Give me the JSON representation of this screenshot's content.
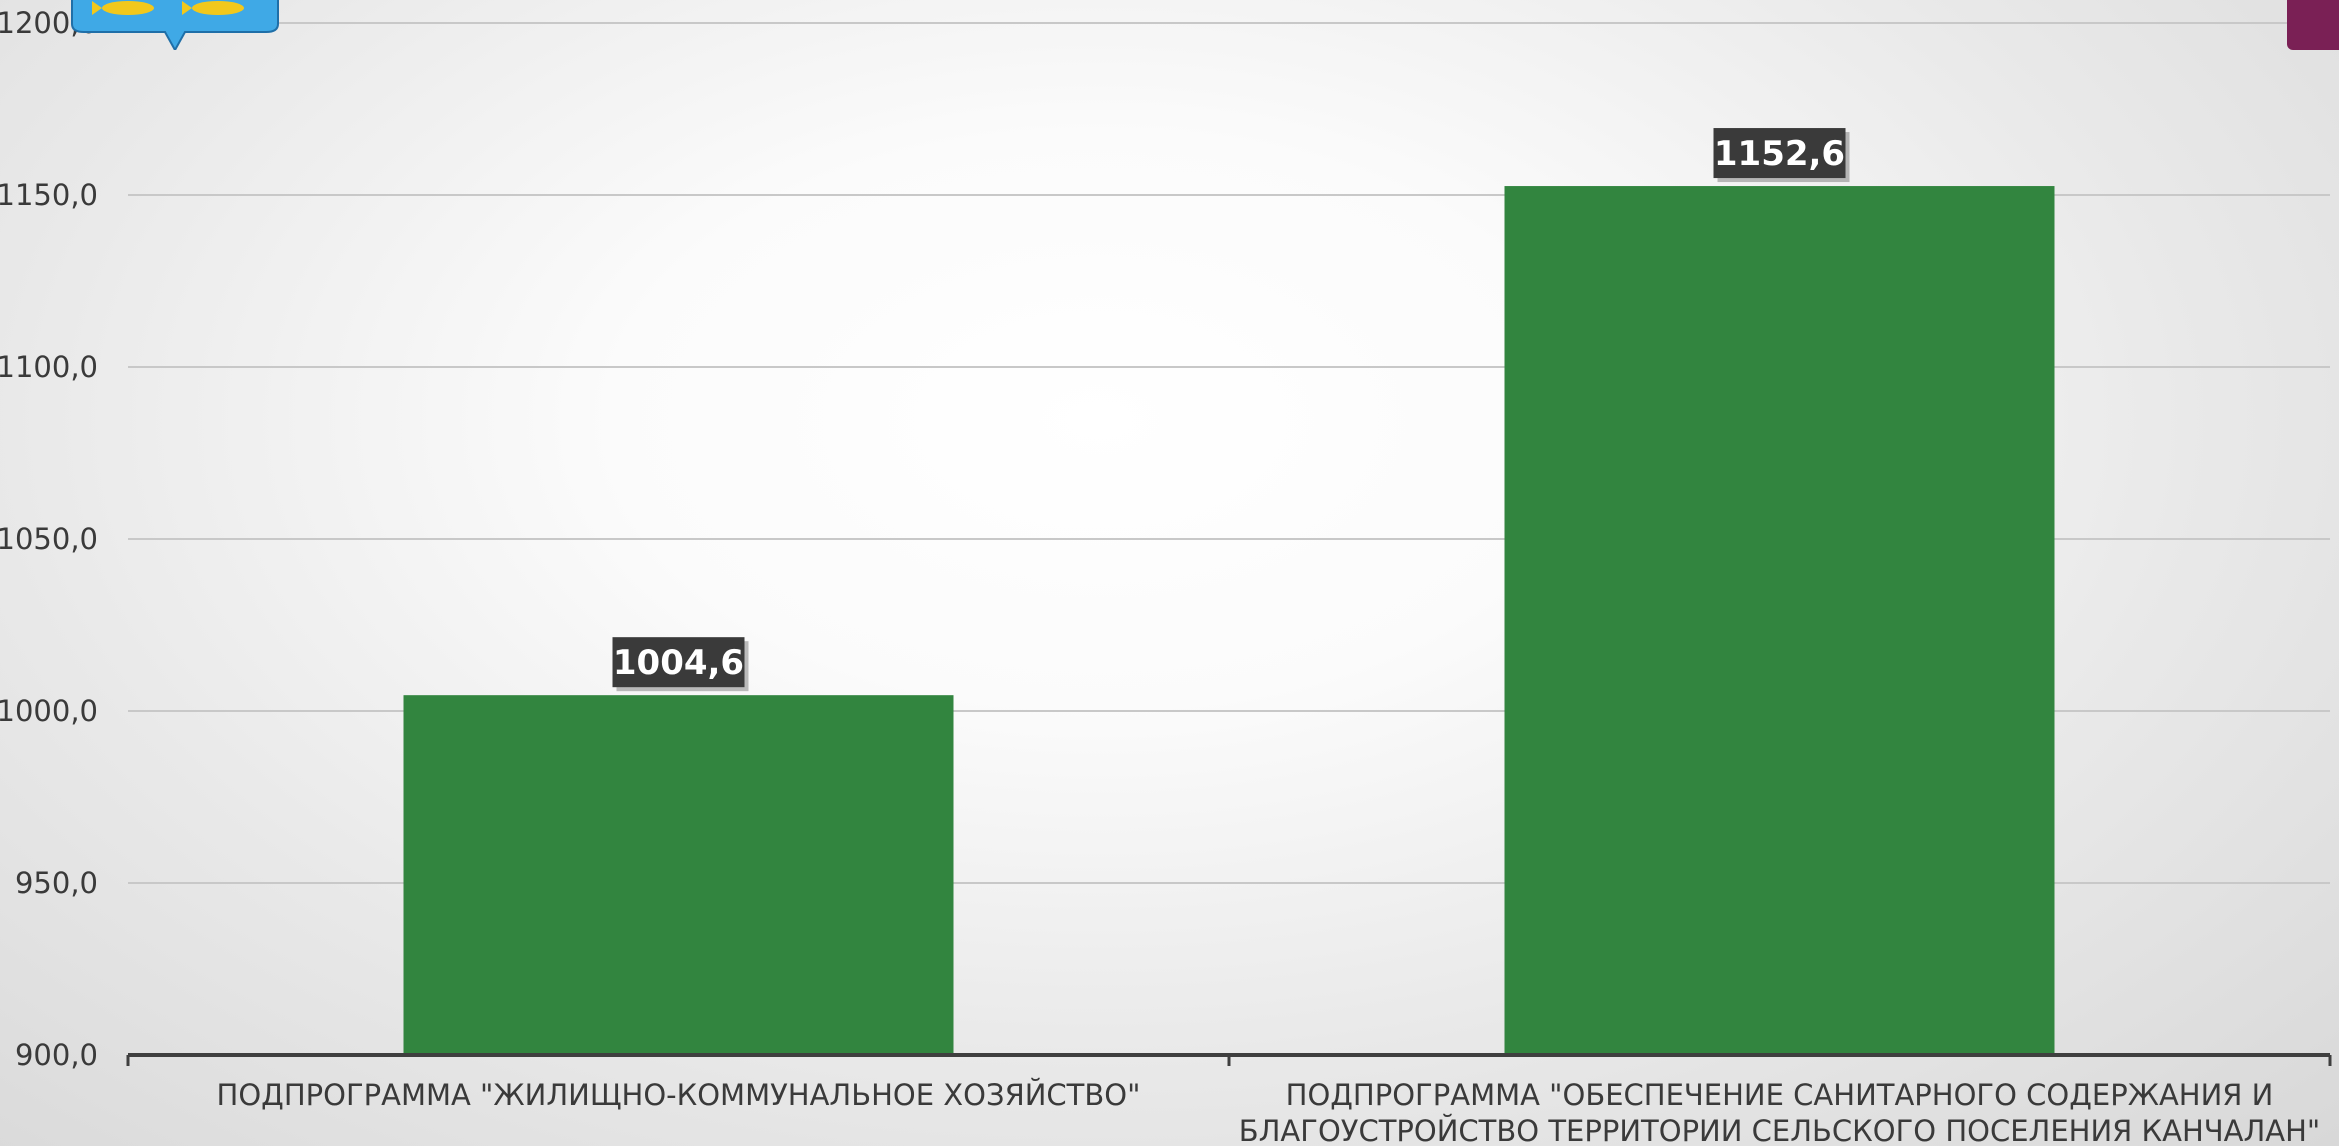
{
  "colors": {
    "bar": "#32853f",
    "gridline": "#c8c8c8",
    "axis": "#3f3f3f",
    "data_label_bg": "#3a3a3a",
    "emblem_shield": "#3fa9e6",
    "emblem_fish": "#f2c81c",
    "corner_tab": "#7a2055"
  },
  "icons": {
    "emblem": "coat-of-arms-fish-icon"
  },
  "chart_data": {
    "type": "bar",
    "categories": [
      [
        "ПОДПРОГРАММА \"ЖИЛИЩНО-КОММУНАЛЬНОЕ ХОЗЯЙСТВО\""
      ],
      [
        "ПОДПРОГРАММА \"ОБЕСПЕЧЕНИЕ САНИТАРНОГО СОДЕРЖАНИЯ И",
        "БЛАГОУСТРОЙСТВО ТЕРРИТОРИИ СЕЛЬСКОГО ПОСЕЛЕНИЯ КАНЧАЛАН\""
      ]
    ],
    "values": [
      1004.6,
      1152.6
    ],
    "data_labels": [
      "1004,6",
      "1152,6"
    ],
    "ylim": [
      900,
      1200
    ],
    "yticks": [
      900,
      950,
      1000,
      1050,
      1100,
      1150,
      1200
    ],
    "ytick_labels": [
      "900,0",
      "950,0",
      "1000,0",
      "1050,0",
      "1100,0",
      "1150,0",
      "1200,0"
    ],
    "grid": true,
    "legend": "none",
    "title": "",
    "xlabel": "",
    "ylabel": ""
  }
}
